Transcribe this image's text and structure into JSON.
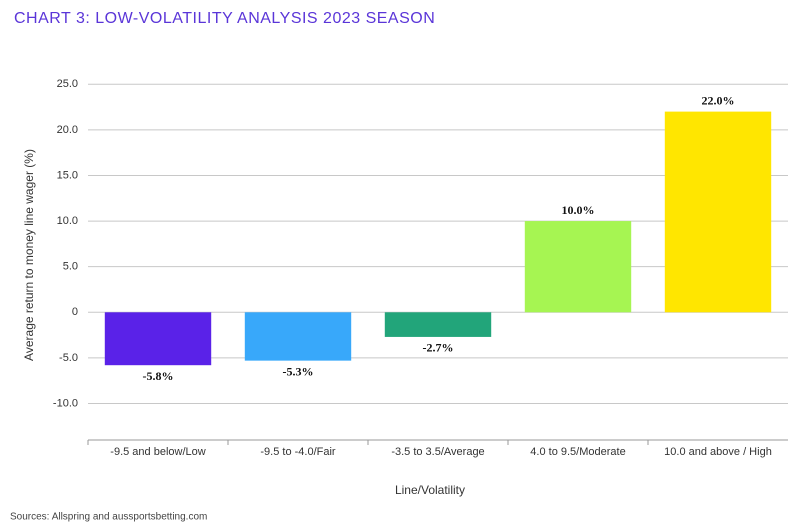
{
  "chart_data": {
    "type": "bar",
    "title": "CHART 3: LOW-VOLATILITY ANALYSIS 2023 SEASON",
    "x_label": "Line/Volatility",
    "y_label": "Average return to money line wager (%)",
    "source": "Sources: Allspring and aussportsbetting.com",
    "categories": [
      "-9.5 and below/Low",
      "-9.5 to -4.0/Fair",
      "-3.5 to 3.5/Average",
      "4.0 to 9.5/Moderate",
      "10.0 and above / High"
    ],
    "values": [
      -5.8,
      -5.3,
      -2.7,
      10.0,
      22.0
    ],
    "value_labels": [
      "-5.8%",
      "-5.3%",
      "-2.7%",
      "10.0%",
      "22.0%"
    ],
    "colors": [
      "#5a22e8",
      "#38a8fa",
      "#22a57a",
      "#a6f552",
      "#ffe600"
    ],
    "ylim": [
      -14,
      27
    ],
    "yticks": [
      {
        "value": -10,
        "label": "-10.0"
      },
      {
        "value": -5,
        "label": "-5.0"
      },
      0,
      {
        "value": 5,
        "label": "5.0"
      },
      {
        "value": 10,
        "label": "10.0"
      },
      {
        "value": 15,
        "label": "15.0"
      },
      {
        "value": 20,
        "label": "20.0"
      },
      {
        "value": 25,
        "label": "25.0"
      }
    ],
    "grid": true
  }
}
